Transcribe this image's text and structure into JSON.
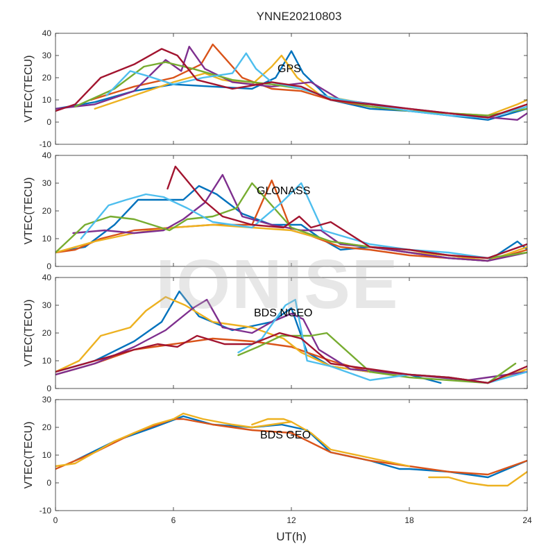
{
  "figure": {
    "title": "YNNE20210803",
    "watermark": "IONISE"
  },
  "colors": {
    "palette": [
      "#0072BD",
      "#D95319",
      "#EDB120",
      "#7E2F8E",
      "#77AC30",
      "#4DBEEE",
      "#A2142F"
    ],
    "axis": "#262626",
    "background": "#ffffff"
  },
  "chart_data": [
    {
      "type": "line",
      "annotation": "GPS",
      "ylabel": "VTEC(TECU)",
      "xlim": [
        0,
        24
      ],
      "ylim": [
        -10,
        40
      ],
      "yticks": [
        -10,
        0,
        10,
        20,
        30,
        40
      ],
      "xticks": [
        0,
        6,
        12,
        18,
        24
      ],
      "show_xtick_labels": false,
      "series": [
        {
          "color": "#0072BD",
          "x": [
            0,
            2,
            4,
            6,
            8,
            10,
            11.2,
            12,
            12.6,
            14,
            16,
            18,
            20,
            22,
            24
          ],
          "y": [
            6,
            9,
            14,
            17,
            16,
            15,
            20,
            32,
            22,
            10,
            6,
            5,
            3,
            1,
            6
          ]
        },
        {
          "color": "#D95319",
          "x": [
            1.8,
            4,
            6,
            7.4,
            8,
            8.6,
            9.5,
            11,
            12.5,
            14,
            16,
            18,
            20,
            22,
            24
          ],
          "y": [
            10,
            16,
            20,
            26,
            35,
            29,
            20,
            15,
            14,
            10,
            7,
            5,
            4,
            2,
            8
          ]
        },
        {
          "color": "#EDB120",
          "x": [
            2,
            4,
            6,
            7.6,
            8.5,
            10,
            11,
            11.5,
            12.3,
            13.5,
            16,
            18,
            20,
            22,
            23.5,
            24
          ],
          "y": [
            6,
            12,
            18,
            22,
            19,
            17,
            25,
            30,
            20,
            12,
            8,
            5,
            4,
            3,
            8,
            10
          ]
        },
        {
          "color": "#7E2F8E",
          "x": [
            0,
            2,
            4,
            5.6,
            6.4,
            6.8,
            7.6,
            9,
            11,
            13,
            14.5,
            18,
            21,
            23.5,
            24
          ],
          "y": [
            6,
            8,
            14,
            28,
            23,
            34,
            24,
            18,
            16,
            18,
            10,
            6,
            3,
            1,
            4
          ]
        },
        {
          "color": "#77AC30",
          "x": [
            1,
            3,
            4.5,
            5.6,
            7,
            9,
            11,
            12.5,
            14,
            16,
            18,
            20,
            22,
            24
          ],
          "y": [
            7,
            15,
            25,
            27,
            24,
            19,
            17,
            15,
            11,
            7,
            5,
            4,
            3,
            6
          ]
        },
        {
          "color": "#4DBEEE",
          "x": [
            2.6,
            3.8,
            4.6,
            6,
            7.5,
            9,
            9.7,
            10.2,
            11,
            12.5,
            14,
            16,
            18,
            20,
            22,
            24
          ],
          "y": [
            12,
            23,
            21,
            17,
            20,
            22,
            31,
            24,
            18,
            15,
            11,
            8,
            5,
            3,
            2,
            7
          ]
        },
        {
          "color": "#A2142F",
          "x": [
            0,
            1,
            2.3,
            4,
            5.4,
            6.2,
            7.2,
            9,
            11,
            12.5,
            14,
            16,
            18,
            20,
            22,
            24
          ],
          "y": [
            5,
            8,
            20,
            26,
            33,
            30,
            19,
            15,
            18,
            16,
            10,
            8,
            6,
            4,
            2,
            8
          ]
        }
      ]
    },
    {
      "type": "line",
      "annotation": "GLONASS",
      "ylabel": "VTEC(TECU)",
      "xlim": [
        0,
        24
      ],
      "ylim": [
        0,
        40
      ],
      "yticks": [
        0,
        10,
        20,
        30,
        40
      ],
      "xticks": [
        0,
        6,
        12,
        18,
        24
      ],
      "show_xtick_labels": false,
      "series": [
        {
          "color": "#0072BD",
          "x": [
            0,
            1.5,
            3,
            4.2,
            5.5,
            6.5,
            7.3,
            8.2,
            9.5,
            11,
            12.5,
            13.5,
            14.5,
            16,
            18,
            20,
            22,
            23.5,
            24
          ],
          "y": [
            5,
            7,
            15,
            24,
            24,
            24,
            29,
            26,
            19,
            15,
            15,
            10,
            6,
            7,
            5,
            3,
            2,
            9,
            6
          ]
        },
        {
          "color": "#D95319",
          "x": [
            0,
            1,
            2.3,
            4,
            6,
            8,
            10,
            11,
            11.4,
            12,
            13,
            14.5,
            16,
            18,
            20,
            22,
            24
          ],
          "y": [
            5,
            6,
            10,
            13,
            14,
            15,
            15,
            31,
            24,
            13,
            11,
            7,
            6,
            4,
            3,
            2,
            6
          ]
        },
        {
          "color": "#EDB120",
          "x": [
            0,
            2,
            4,
            6,
            8,
            10,
            12,
            14,
            16,
            18,
            20,
            22,
            24
          ],
          "y": [
            5,
            9,
            12,
            14,
            15,
            14,
            13,
            9,
            7,
            5,
            4,
            2,
            7
          ]
        },
        {
          "color": "#7E2F8E",
          "x": [
            0.9,
            2.5,
            4,
            5.5,
            6.5,
            7.6,
            8.5,
            9.1,
            9.5,
            11,
            12.5,
            13.5,
            14.5,
            16,
            18,
            20,
            22,
            24
          ],
          "y": [
            12,
            13,
            12,
            13,
            17,
            23,
            33,
            24,
            18,
            15,
            13,
            13,
            8,
            7,
            5,
            3,
            2,
            5
          ]
        },
        {
          "color": "#77AC30",
          "x": [
            0,
            1.5,
            2.8,
            4,
            5.8,
            6.7,
            8,
            9.2,
            10,
            12,
            14,
            16,
            18,
            20,
            22,
            24
          ],
          "y": [
            5,
            15,
            18,
            17,
            13,
            17,
            18,
            21,
            30,
            14,
            9,
            7,
            6,
            4,
            3,
            5
          ]
        },
        {
          "color": "#4DBEEE",
          "x": [
            1.3,
            2.7,
            3.6,
            4.6,
            5.5,
            6.7,
            8,
            10,
            11.5,
            12.5,
            13.6,
            16,
            18,
            20,
            22,
            24
          ],
          "y": [
            10,
            22,
            24,
            26,
            25,
            21,
            16,
            14,
            23,
            30,
            13,
            8,
            6,
            5,
            3,
            8
          ]
        },
        {
          "color": "#A2142F",
          "x": [
            5.7,
            6.1,
            6.8,
            7.5,
            8.5,
            10,
            11.6,
            12.4,
            13,
            14,
            16,
            18,
            20,
            22,
            24
          ],
          "y": [
            28,
            36,
            30,
            24,
            18,
            15,
            14,
            18,
            14,
            16,
            7,
            6,
            4,
            3,
            8
          ]
        }
      ]
    },
    {
      "type": "line",
      "annotation": "BDS NGEO",
      "ylabel": "VTEC(TECU)",
      "xlim": [
        0,
        24
      ],
      "ylim": [
        0,
        40
      ],
      "yticks": [
        0,
        10,
        20,
        30,
        40
      ],
      "xticks": [
        0,
        6,
        12,
        18,
        24
      ],
      "show_xtick_labels": false,
      "series": [
        {
          "color": "#0072BD",
          "x": [
            0,
            2,
            4,
            5.4,
            6.3,
            7.3,
            9,
            11,
            12,
            12.8,
            14,
            16,
            18,
            19.6
          ],
          "y": [
            6,
            10,
            17,
            24,
            35,
            26,
            21,
            24,
            29,
            13,
            8,
            6,
            5,
            2
          ]
        },
        {
          "color": "#D95319",
          "x": [
            0,
            2,
            4,
            6,
            8,
            10,
            12,
            14,
            16,
            18,
            20,
            22,
            24
          ],
          "y": [
            5,
            9,
            14,
            16,
            18,
            17,
            15,
            10,
            6,
            5,
            4,
            2,
            7
          ]
        },
        {
          "color": "#EDB120",
          "x": [
            0,
            1.2,
            2.3,
            3.8,
            4.6,
            5.6,
            6.6,
            8,
            10,
            11.6,
            12.5,
            14,
            16,
            18,
            20,
            22,
            24
          ],
          "y": [
            6,
            10,
            19,
            22,
            28,
            33,
            30,
            24,
            22,
            18,
            13,
            8,
            6,
            5,
            4,
            2,
            7
          ]
        },
        {
          "color": "#7E2F8E",
          "x": [
            0,
            2,
            4,
            5.6,
            7,
            7.7,
            8.5,
            10,
            11,
            12,
            12.6,
            13.4,
            15,
            18,
            21,
            24
          ],
          "y": [
            5,
            9,
            15,
            21,
            29,
            32,
            22,
            20,
            24,
            27,
            25,
            14,
            7,
            5,
            3,
            6
          ]
        },
        {
          "color": "#77AC30",
          "x": [
            9.3,
            10.3,
            11.5,
            13,
            13.8,
            16,
            18,
            20,
            22,
            23.4
          ],
          "y": [
            12,
            15,
            19,
            19,
            20,
            6,
            4,
            3,
            2,
            9
          ]
        },
        {
          "color": "#4DBEEE",
          "x": [
            9.3,
            10.5,
            11.7,
            12.2,
            12.8,
            14,
            16,
            17,
            18,
            20,
            22,
            24
          ],
          "y": [
            13,
            18,
            30,
            32,
            10,
            8,
            3,
            4,
            5,
            4,
            2,
            6
          ]
        },
        {
          "color": "#A2142F",
          "x": [
            0,
            2,
            4,
            5.2,
            6.2,
            7.2,
            8.6,
            10,
            11.4,
            12.5,
            14,
            16,
            18,
            20,
            22,
            24
          ],
          "y": [
            6,
            10,
            14,
            16,
            15,
            19,
            16,
            16,
            20,
            18,
            9,
            7,
            5,
            4,
            2,
            8
          ]
        }
      ]
    },
    {
      "type": "line",
      "annotation": "BDS GEO",
      "ylabel": "VTEC(TECU)",
      "xlabel": "UT(h)",
      "xlim": [
        0,
        24
      ],
      "ylim": [
        -10,
        30
      ],
      "yticks": [
        -10,
        0,
        10,
        20,
        30
      ],
      "xticks": [
        0,
        6,
        12,
        18,
        24
      ],
      "xtick_labels": [
        "0",
        "6",
        "12",
        "18",
        "24"
      ],
      "show_xtick_labels": true,
      "series": [
        {
          "color": "#0072BD",
          "x": [
            1,
            3,
            5,
            6.5,
            8,
            10,
            11.5,
            12.8,
            14,
            16,
            17.5,
            18,
            20,
            22,
            24
          ],
          "y": [
            8,
            15,
            20,
            24,
            21,
            20,
            21,
            19,
            11,
            8,
            5,
            5,
            4,
            2,
            8
          ]
        },
        {
          "color": "#D95319",
          "x": [
            0,
            2,
            4,
            6,
            6.5,
            8,
            10,
            12,
            14,
            16,
            18,
            20,
            22,
            24
          ],
          "y": [
            5,
            11,
            18,
            23,
            23,
            21,
            19,
            18,
            11,
            8,
            6,
            4,
            3,
            8
          ]
        },
        {
          "color": "#EDB120",
          "x": [
            0,
            1,
            2,
            3,
            4,
            5,
            6,
            6.5,
            7.5,
            9,
            10,
            11,
            12,
            13,
            14,
            16,
            18
          ],
          "y": [
            6,
            7,
            11,
            15,
            18,
            21,
            23,
            25,
            23,
            21,
            20,
            21,
            22,
            18,
            12,
            9,
            6
          ]
        },
        {
          "color": "#EDB120",
          "x": [
            19,
            20,
            21,
            22,
            23,
            24
          ],
          "y": [
            2,
            2,
            0,
            -1,
            -1,
            4
          ]
        },
        {
          "color": "#EDB120",
          "x": [
            10,
            10.8,
            11.6,
            12
          ],
          "y": [
            21,
            23,
            23,
            22
          ]
        }
      ]
    }
  ]
}
